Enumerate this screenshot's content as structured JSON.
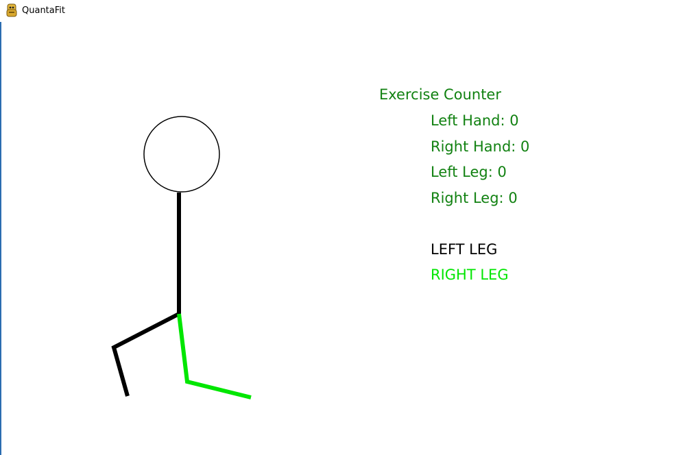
{
  "window": {
    "title": "QuantaFit",
    "icon": "python-snake-icon"
  },
  "counter": {
    "title": "Exercise Counter",
    "left_hand_label": "Left Hand:",
    "left_hand_count": "0",
    "right_hand_label": "Right Hand:",
    "right_hand_count": "0",
    "left_leg_label": "Left Leg:",
    "left_leg_count": "0",
    "right_leg_label": "Right Leg:",
    "right_leg_count": "0"
  },
  "legend": {
    "left_leg": "LEFT LEG",
    "right_leg": "RIGHT LEG"
  },
  "colors": {
    "counter_text": "#118111",
    "left_leg": "#000000",
    "right_leg": "#00e600",
    "body": "#000000"
  }
}
